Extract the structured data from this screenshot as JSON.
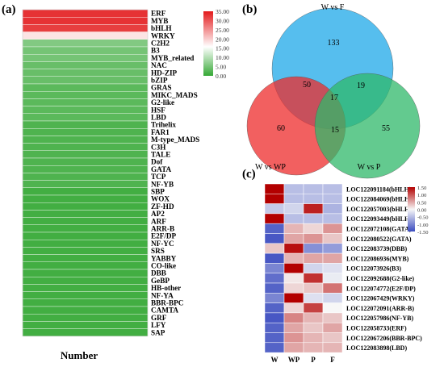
{
  "panels": {
    "a": "(a)",
    "b": "(b)",
    "c": "(c)"
  },
  "chart_data": [
    {
      "type": "heatmap",
      "panel": "a",
      "xlabel": "Number",
      "rows": [
        "ERF",
        "MYB",
        "bHLH",
        "WRKY",
        "C2H2",
        "B3",
        "MYB_related",
        "NAC",
        "HD-ZIP",
        "bZIP",
        "GRAS",
        "MIKC_MADS",
        "G2-like",
        "HSF",
        "LBD",
        "Trihelix",
        "FAR1",
        "M-type_MADS",
        "C3H",
        "TALE",
        "Dof",
        "GATA",
        "TCP",
        "NF-YB",
        "SBP",
        "WOX",
        "ZF-HD",
        "AP2",
        "ARF",
        "ARR-B",
        "E2F/DP",
        "NF-YC",
        "SRS",
        "YABBY",
        "CO-like",
        "DBB",
        "GeBP",
        "HB-other",
        "NF-YA",
        "BBR-BPC",
        "CAMTA",
        "GRF",
        "LFY",
        "SAP"
      ],
      "values": [
        33,
        33,
        32,
        18,
        6,
        5,
        5,
        4,
        4,
        4,
        3,
        3,
        3,
        3,
        3,
        2,
        2,
        2,
        2,
        2,
        2,
        2,
        2,
        2,
        1,
        1,
        1,
        1,
        1,
        1,
        1,
        1,
        1,
        1,
        1,
        1,
        1,
        1,
        1,
        1,
        1,
        1,
        1,
        1
      ],
      "colorbar": {
        "ticks": [
          "35.00",
          "30.00",
          "25.00",
          "20.00",
          "15.00",
          "10.00",
          "5.00",
          "0.00"
        ],
        "range": [
          0,
          35
        ],
        "colors": [
          "#35a835",
          "#ffffff",
          "#e31a1c"
        ]
      }
    },
    {
      "type": "venn",
      "panel": "b",
      "sets": [
        {
          "name": "W vs F",
          "color": "#1ea8e8"
        },
        {
          "name": "W vs WP",
          "color": "#ee2b2b"
        },
        {
          "name": "W vs P",
          "color": "#2fb86a"
        }
      ],
      "regions": {
        "F_only": 133,
        "WP_only": 60,
        "P_only": 55,
        "F_WP": 50,
        "F_P": 19,
        "WP_P": 15,
        "all": 17
      }
    },
    {
      "type": "heatmap",
      "panel": "c",
      "columns": [
        "W",
        "WP",
        "P",
        "F"
      ],
      "rows": [
        "LOC122091184(bHLH)",
        "LOC122084069(bHLH)",
        "LOC122057003(bHLH)",
        "LOC122093449(bHLH)",
        "LOC122072108(GATA)",
        "LOC122080522(GATA)",
        "LOC122083739(DBB)",
        "LOC122086936(MYB)",
        "LOC122073926(B3)",
        "LOC122092688(G2-like)",
        "LOC122074772(E2F/DP)",
        "LOC122067429(WRKY)",
        "LOC122072091(ARR-B)",
        "LOC122057986(NF-YB)",
        "LOC122058733(ERF)",
        "LOC122067206(BBR-BPC)",
        "LOC122083898(LBD)"
      ],
      "matrix": [
        [
          1.5,
          -0.5,
          -0.5,
          -0.5
        ],
        [
          1.5,
          -0.5,
          -0.5,
          -0.5
        ],
        [
          -0.4,
          -0.3,
          1.3,
          -0.6
        ],
        [
          1.5,
          -0.5,
          -0.5,
          -0.5
        ],
        [
          -1.3,
          0.4,
          0.2,
          0.6
        ],
        [
          -1.4,
          0.5,
          0.6,
          0.3
        ],
        [
          0.3,
          1.4,
          -0.9,
          -0.8
        ],
        [
          -1.4,
          0.4,
          0.5,
          0.5
        ],
        [
          -1.0,
          1.5,
          -0.3,
          -0.2
        ],
        [
          -1.2,
          0.1,
          1.2,
          -0.1
        ],
        [
          -1.3,
          0.2,
          0.3,
          0.8
        ],
        [
          -1.0,
          1.5,
          -0.2,
          -0.3
        ],
        [
          -1.3,
          0.2,
          1.1,
          0.0
        ],
        [
          -1.4,
          0.7,
          0.4,
          0.3
        ],
        [
          -1.3,
          0.5,
          0.3,
          0.5
        ],
        [
          -1.3,
          0.6,
          0.4,
          0.3
        ],
        [
          -1.3,
          0.5,
          0.4,
          0.4
        ]
      ],
      "colorbar": {
        "ticks": [
          "1.50",
          "1.00",
          "0.50",
          "0.00",
          "-0.50",
          "-1.00",
          "-1.50"
        ],
        "range": [
          -1.5,
          1.5
        ],
        "colors": [
          "#3b4cc0",
          "#f7f7f7",
          "#b30000"
        ]
      }
    }
  ]
}
